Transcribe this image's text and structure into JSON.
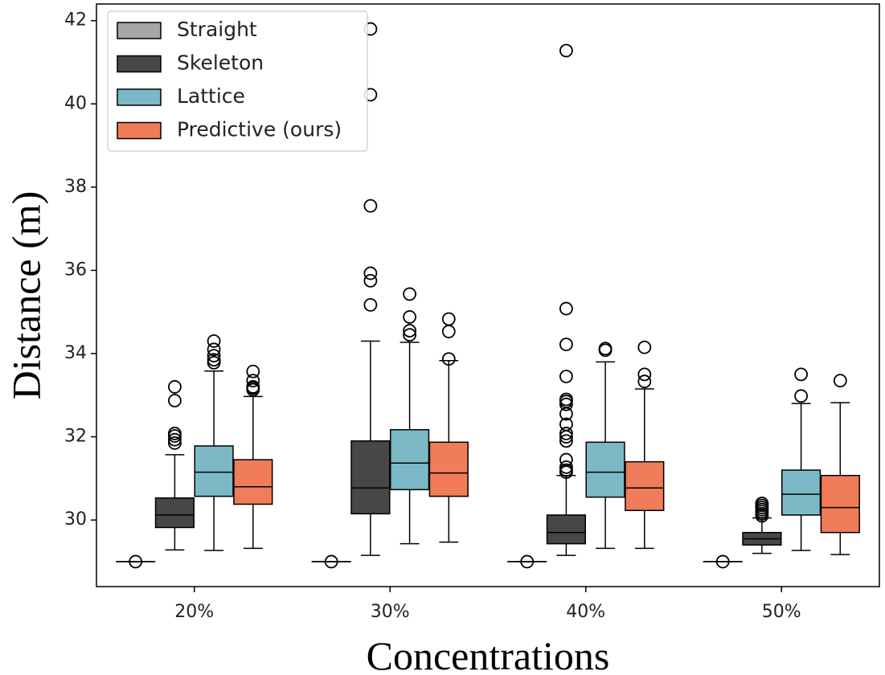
{
  "chart_data": {
    "type": "box",
    "title": "",
    "xlabel": "Concentrations",
    "ylabel": "Distance (m)",
    "ylim": [
      28.4,
      42.4
    ],
    "yticks": [
      30,
      32,
      34,
      36,
      38,
      40,
      42
    ],
    "categories": [
      "20%",
      "30%",
      "40%",
      "50%"
    ],
    "legend_position": "top-left",
    "series": [
      {
        "name": "Straight",
        "color": "#a6a6a6",
        "boxes": [
          {
            "whislo": 29.0,
            "q1": 29.0,
            "med": 29.0,
            "q3": 29.0,
            "whishi": 29.0,
            "fliers": [
              29.0
            ]
          },
          {
            "whislo": 29.0,
            "q1": 29.0,
            "med": 29.0,
            "q3": 29.0,
            "whishi": 29.0,
            "fliers": [
              29.0
            ]
          },
          {
            "whislo": 29.0,
            "q1": 29.0,
            "med": 29.0,
            "q3": 29.0,
            "whishi": 29.0,
            "fliers": [
              29.0
            ]
          },
          {
            "whislo": 29.0,
            "q1": 29.0,
            "med": 29.0,
            "q3": 29.0,
            "whishi": 29.0,
            "fliers": [
              29.0
            ]
          }
        ]
      },
      {
        "name": "Skeleton",
        "color": "#474747",
        "boxes": [
          {
            "whislo": 29.28,
            "q1": 29.82,
            "med": 30.12,
            "q3": 30.53,
            "whishi": 31.57,
            "fliers": [
              31.85,
              31.93,
              32.02,
              32.08,
              32.87,
              33.2
            ]
          },
          {
            "whislo": 29.15,
            "q1": 30.15,
            "med": 30.77,
            "q3": 31.9,
            "whishi": 34.3,
            "fliers": [
              35.17,
              35.75,
              35.93,
              37.55,
              40.22,
              41.8
            ]
          },
          {
            "whislo": 29.15,
            "q1": 29.43,
            "med": 29.7,
            "q3": 30.12,
            "whishi": 31.07,
            "fliers": [
              31.15,
              31.2,
              31.27,
              31.45,
              31.9,
              32.0,
              32.08,
              32.3,
              32.55,
              32.78,
              32.85,
              32.9,
              33.45,
              34.22,
              35.08,
              41.28
            ]
          },
          {
            "whislo": 29.2,
            "q1": 29.4,
            "med": 29.55,
            "q3": 29.7,
            "whishi": 30.05,
            "fliers": [
              30.1,
              30.15,
              30.2,
              30.25,
              30.3,
              30.35,
              30.4
            ]
          }
        ]
      },
      {
        "name": "Lattice",
        "color": "#7cb8c5",
        "boxes": [
          {
            "whislo": 29.27,
            "q1": 30.57,
            "med": 31.15,
            "q3": 31.78,
            "whishi": 33.58,
            "fliers": [
              33.78,
              33.85,
              33.95,
              34.1,
              34.3
            ]
          },
          {
            "whislo": 29.43,
            "q1": 30.73,
            "med": 31.37,
            "q3": 32.17,
            "whishi": 34.27,
            "fliers": [
              34.45,
              34.55,
              34.88,
              35.43
            ]
          },
          {
            "whislo": 29.32,
            "q1": 30.55,
            "med": 31.15,
            "q3": 31.87,
            "whishi": 33.8,
            "fliers": [
              34.08,
              34.12
            ]
          },
          {
            "whislo": 29.27,
            "q1": 30.12,
            "med": 30.62,
            "q3": 31.2,
            "whishi": 32.8,
            "fliers": [
              32.98,
              33.5
            ]
          }
        ]
      },
      {
        "name": "Predictive (ours)",
        "color": "#f07c5a",
        "boxes": [
          {
            "whislo": 29.32,
            "q1": 30.38,
            "med": 30.8,
            "q3": 31.45,
            "whishi": 32.97,
            "fliers": [
              33.13,
              33.17,
              33.2,
              33.35,
              33.57
            ]
          },
          {
            "whislo": 29.47,
            "q1": 30.57,
            "med": 31.13,
            "q3": 31.87,
            "whishi": 33.83,
            "fliers": [
              33.87,
              34.53,
              34.83
            ]
          },
          {
            "whislo": 29.32,
            "q1": 30.23,
            "med": 30.77,
            "q3": 31.4,
            "whishi": 33.15,
            "fliers": [
              33.33,
              33.5,
              34.15
            ]
          },
          {
            "whislo": 29.17,
            "q1": 29.7,
            "med": 30.3,
            "q3": 31.07,
            "whishi": 32.82,
            "fliers": [
              33.35
            ]
          }
        ]
      }
    ]
  }
}
